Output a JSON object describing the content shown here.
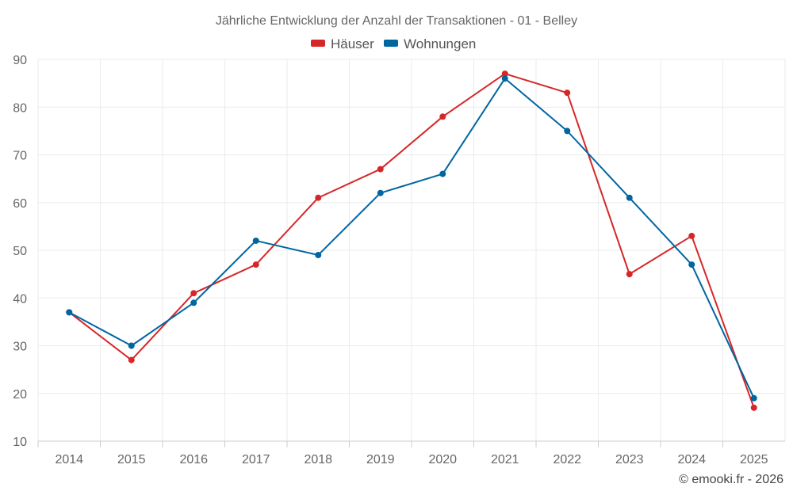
{
  "chart_data": {
    "type": "line",
    "title": "Jährliche Entwicklung der Anzahl der Transaktionen - 01 - Belley",
    "categories": [
      "2014",
      "2015",
      "2016",
      "2017",
      "2018",
      "2019",
      "2020",
      "2021",
      "2022",
      "2023",
      "2024",
      "2025"
    ],
    "series": [
      {
        "name": "Häuser",
        "color": "#d62728",
        "values": [
          37,
          27,
          41,
          47,
          61,
          67,
          78,
          87,
          83,
          45,
          53,
          17
        ]
      },
      {
        "name": "Wohnungen",
        "color": "#0066a0",
        "values": [
          37,
          30,
          39,
          52,
          49,
          62,
          66,
          86,
          75,
          61,
          47,
          19
        ]
      }
    ],
    "ylim": [
      10,
      90
    ],
    "yticks": [
      10,
      20,
      30,
      40,
      50,
      60,
      70,
      80,
      90
    ],
    "xlabel": "",
    "ylabel": "",
    "grid": true,
    "legend": "top-center"
  },
  "credit": "© emooki.fr - 2026"
}
